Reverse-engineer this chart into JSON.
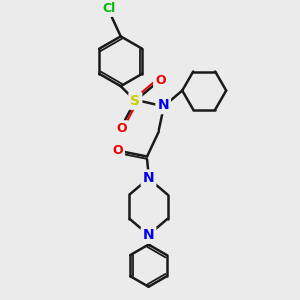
{
  "bg_color": "#ebebeb",
  "bond_color": "#1a1a1a",
  "atom_colors": {
    "N": "#0000ee",
    "O": "#ee0000",
    "S": "#cccc00",
    "Cl": "#00bb00",
    "C": "#1a1a1a"
  },
  "bond_width": 1.8,
  "fig_size": [
    3.0,
    3.0
  ],
  "dpi": 100,
  "xlim": [
    0,
    10
  ],
  "ylim": [
    0,
    10
  ]
}
